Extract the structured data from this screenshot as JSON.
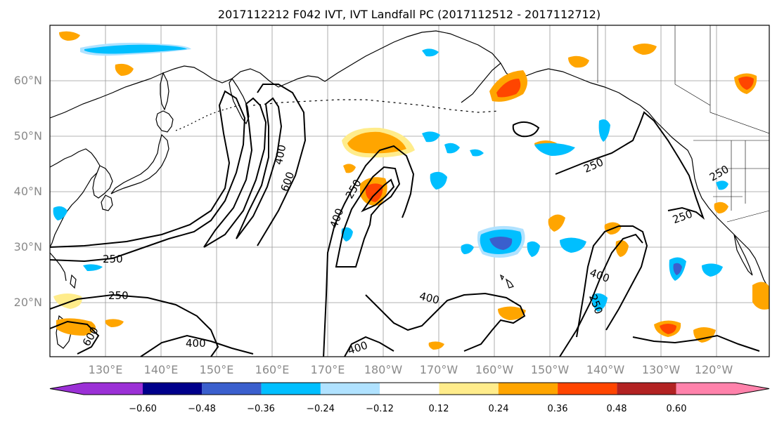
{
  "title": "2017112212 F042 IVT, IVT Landfall PC (2017112512 - 2017112712)",
  "map": {
    "lat_labels": [
      "60°N",
      "50°N",
      "40°N",
      "30°N",
      "20°N"
    ],
    "lon_labels": [
      "130°E",
      "140°E",
      "150°E",
      "160°E",
      "170°E",
      "180°W",
      "170°W",
      "160°W",
      "150°W",
      "140°W",
      "130°W",
      "120°W"
    ],
    "contour_labels": [
      "250",
      "250",
      "250",
      "250",
      "250",
      "250",
      "400",
      "400",
      "400",
      "400",
      "400",
      "400",
      "600",
      "600",
      "250"
    ]
  },
  "colorbar": {
    "tick_labels": [
      "−0.60",
      "−0.48",
      "−0.36",
      "−0.24",
      "−0.12",
      "0.12",
      "0.24",
      "0.36",
      "0.48",
      "0.60"
    ],
    "colors": [
      "#9b30d6",
      "#00008b",
      "#3a5fcd",
      "#00bfff",
      "#b0e2ff",
      "#ffffff",
      "#ffec8b",
      "#ffa500",
      "#ff4500",
      "#b22222",
      "#ff82ab"
    ]
  }
}
